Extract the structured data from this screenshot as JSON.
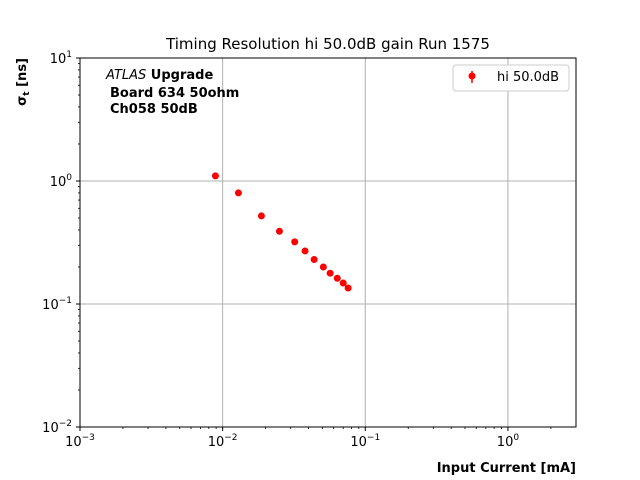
{
  "chart_data": {
    "type": "scatter",
    "title": "Timing Resolution hi 50.0dB gain Run 1575",
    "xlabel": "Input Current [mA]",
    "ylabel": "σt [ns]",
    "xscale": "log",
    "yscale": "log",
    "xlim": [
      0.001,
      3.0
    ],
    "ylim": [
      0.01,
      10
    ],
    "grid": true,
    "legend_placement": "top-right",
    "annotation": {
      "line1_italic": "ATLAS",
      "line1_bold": " Upgrade",
      "line2": "Board 634 50ohm",
      "line3": "Ch058 50dB"
    },
    "x_ticks": [
      {
        "value": 0.001,
        "base": "10",
        "exp": "−3"
      },
      {
        "value": 0.01,
        "base": "10",
        "exp": "−2"
      },
      {
        "value": 0.1,
        "base": "10",
        "exp": "−1"
      },
      {
        "value": 1,
        "base": "10",
        "exp": "0"
      }
    ],
    "y_ticks": [
      {
        "value": 0.01,
        "base": "10",
        "exp": "−2"
      },
      {
        "value": 0.1,
        "base": "10",
        "exp": "−1"
      },
      {
        "value": 1,
        "base": "10",
        "exp": "0"
      },
      {
        "value": 10,
        "base": "10",
        "exp": "1"
      }
    ],
    "series": [
      {
        "name": "hi 50.0dB",
        "color": "#ff0000",
        "marker": "circle",
        "x": [
          0.0089,
          0.0129,
          0.0187,
          0.025,
          0.032,
          0.0378,
          0.0438,
          0.0508,
          0.0567,
          0.0636,
          0.07,
          0.0758
        ],
        "y": [
          1.1,
          0.8,
          0.52,
          0.39,
          0.32,
          0.27,
          0.23,
          0.2,
          0.178,
          0.162,
          0.148,
          0.135
        ]
      }
    ]
  }
}
